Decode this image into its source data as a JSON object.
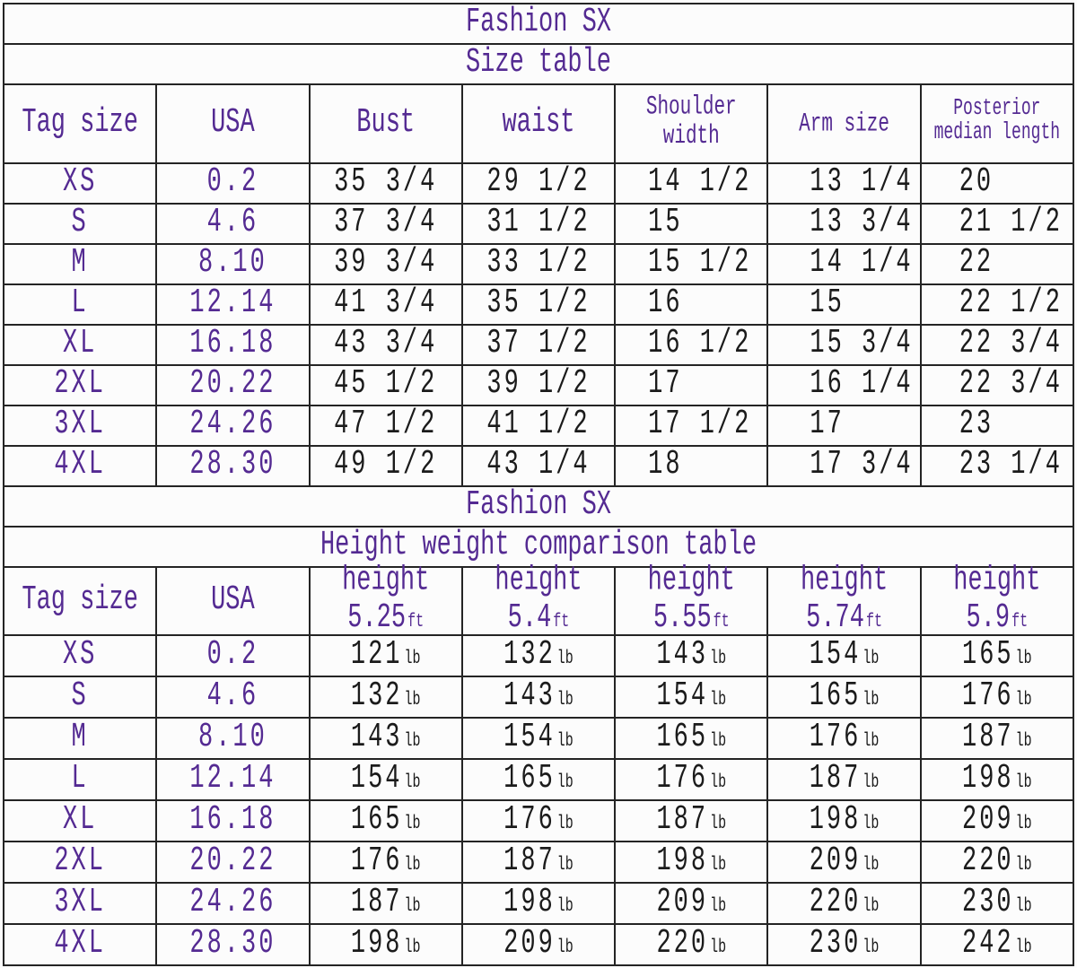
{
  "colors": {
    "accent_purple": "#542a92",
    "text_black": "#1b1b1b",
    "border": "#242424",
    "background": "#fcfcfc"
  },
  "size_table": {
    "brand": "Fashion SX",
    "title": "Size table",
    "columns": [
      "Tag size",
      "USA",
      "Bust",
      "waist",
      "Shoulder width",
      "Arm size",
      "Posterior median length"
    ],
    "rows": [
      [
        "XS",
        "0.2",
        "35 3/4",
        "29 1/2",
        "14 1/2",
        "13 1/4",
        "20"
      ],
      [
        "S",
        "4.6",
        "37 3/4",
        "31 1/2",
        "15",
        "13 3/4",
        "21 1/2"
      ],
      [
        "M",
        "8.10",
        "39 3/4",
        "33 1/2",
        "15 1/2",
        "14 1/4",
        "22"
      ],
      [
        "L",
        "12.14",
        "41 3/4",
        "35 1/2",
        "16",
        "15",
        "22 1/2"
      ],
      [
        "XL",
        "16.18",
        "43 3/4",
        "37 1/2",
        "16 1/2",
        "15 3/4",
        "22 3/4"
      ],
      [
        "2XL",
        "20.22",
        "45 1/2",
        "39 1/2",
        "17",
        "16 1/4",
        "22 3/4"
      ],
      [
        "3XL",
        "24.26",
        "47 1/2",
        "41 1/2",
        "17 1/2",
        "17",
        "23"
      ],
      [
        "4XL",
        "28.30",
        "49 1/2",
        "43 1/4",
        "18",
        "17 3/4",
        "23 1/4"
      ]
    ]
  },
  "height_weight_table": {
    "brand": "Fashion SX",
    "title": "Height weight comparison table",
    "base_columns": [
      "Tag size",
      "USA"
    ],
    "height_label": "height",
    "height_unit": "ft",
    "weight_unit": "lb",
    "heights": [
      "5.25",
      "5.4",
      "5.55",
      "5.74",
      "5.9"
    ],
    "rows": [
      {
        "tag": "XS",
        "usa": "0.2",
        "weights": [
          "121",
          "132",
          "143",
          "154",
          "165"
        ]
      },
      {
        "tag": "S",
        "usa": "4.6",
        "weights": [
          "132",
          "143",
          "154",
          "165",
          "176"
        ]
      },
      {
        "tag": "M",
        "usa": "8.10",
        "weights": [
          "143",
          "154",
          "165",
          "176",
          "187"
        ]
      },
      {
        "tag": "L",
        "usa": "12.14",
        "weights": [
          "154",
          "165",
          "176",
          "187",
          "198"
        ]
      },
      {
        "tag": "XL",
        "usa": "16.18",
        "weights": [
          "165",
          "176",
          "187",
          "198",
          "209"
        ]
      },
      {
        "tag": "2XL",
        "usa": "20.22",
        "weights": [
          "176",
          "187",
          "198",
          "209",
          "220"
        ]
      },
      {
        "tag": "3XL",
        "usa": "24.26",
        "weights": [
          "187",
          "198",
          "209",
          "220",
          "230"
        ]
      },
      {
        "tag": "4XL",
        "usa": "28.30",
        "weights": [
          "198",
          "209",
          "220",
          "230",
          "242"
        ]
      }
    ]
  }
}
